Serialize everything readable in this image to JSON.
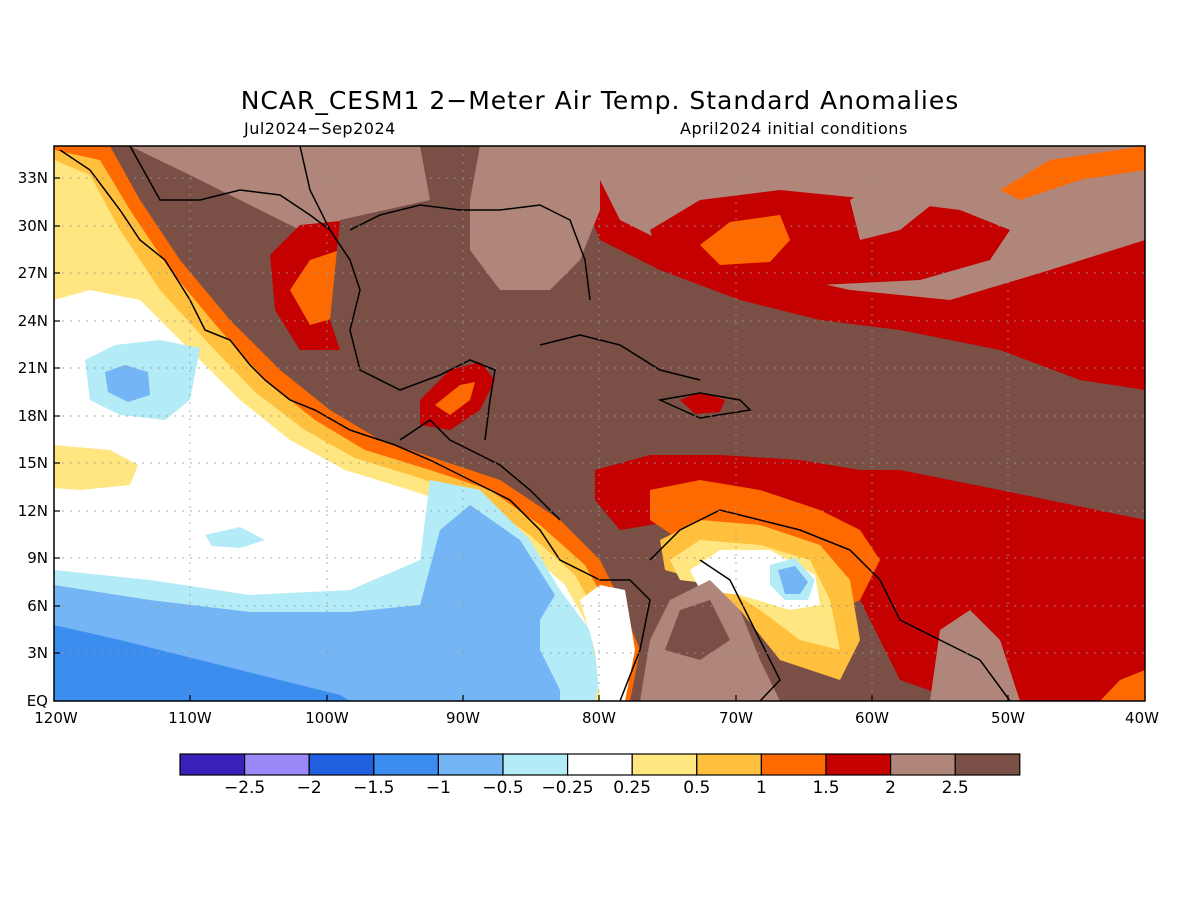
{
  "title": "NCAR_CESM1 2−Meter Air Temp. Standard Anomalies",
  "subtitle_left": "Jul2024−Sep2024",
  "subtitle_right": "April2024 initial conditions",
  "y_ticks": [
    "33N",
    "30N",
    "27N",
    "24N",
    "21N",
    "18N",
    "15N",
    "12N",
    "9N",
    "6N",
    "3N",
    "EQ"
  ],
  "x_ticks": [
    "120W",
    "110W",
    "100W",
    "90W",
    "80W",
    "70W",
    "60W",
    "50W",
    "40W"
  ],
  "colorbar": {
    "colors": [
      "#3a1fb8",
      "#9b87f5",
      "#1f5fe0",
      "#3b8ef0",
      "#74b6f5",
      "#b3ecf7",
      "#ffffff",
      "#ffe680",
      "#ffc03d",
      "#ff6a00",
      "#c40000",
      "#b0867a",
      "#7a4f45"
    ],
    "labels": [
      "−2.5",
      "−2",
      "−1.5",
      "−1",
      "−0.5",
      "−0.25",
      "0.25",
      "0.5",
      "1",
      "1.5",
      "2",
      "2.5"
    ]
  },
  "palette": {
    "deep_blue": "#3b8ef0",
    "mid_blue": "#74b6f5",
    "light_blue": "#b3ecf7",
    "white": "#ffffff",
    "yellow": "#ffe680",
    "light_orange": "#ffc03d",
    "orange": "#ff6a00",
    "red": "#c40000",
    "light_brown": "#b0867a",
    "dark_brown": "#7a4f45"
  }
}
